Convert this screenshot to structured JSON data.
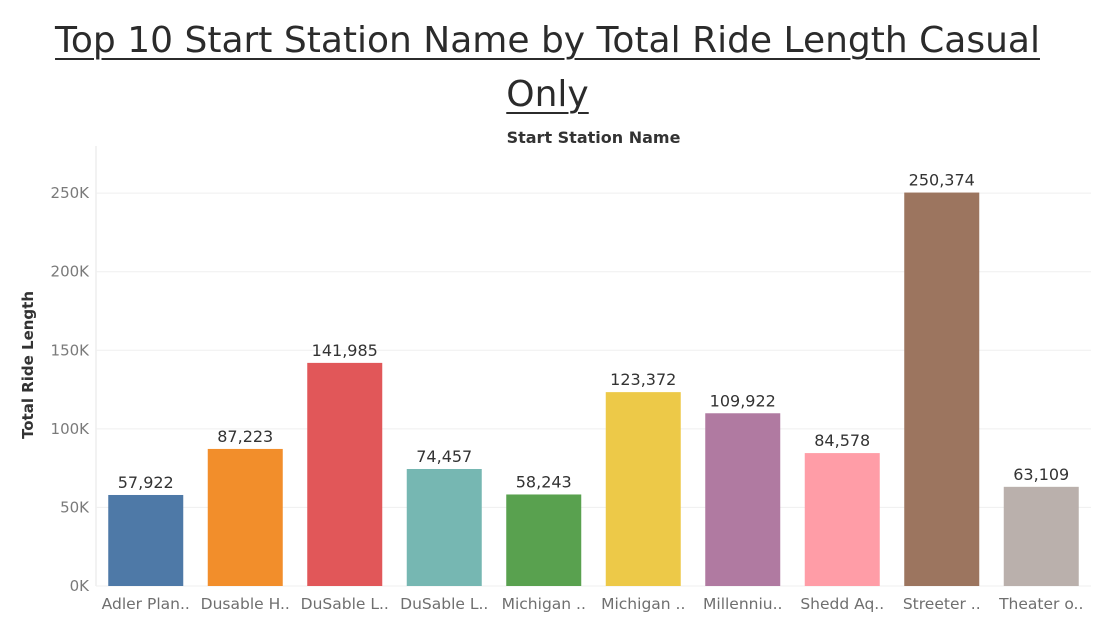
{
  "chart_data": {
    "type": "bar",
    "title_line1": "Top 10 Start Station Name by Total Ride Length Casual",
    "title_line2": "Only",
    "column_header": "Start Station Name",
    "ylabel": "Total Ride Length",
    "ylim": [
      0,
      280000
    ],
    "yticks": [
      0,
      50000,
      100000,
      150000,
      200000,
      250000
    ],
    "ytick_labels": [
      "0K",
      "50K",
      "100K",
      "150K",
      "200K",
      "250K"
    ],
    "grid": true,
    "categories": [
      "Adler Plan..",
      "Dusable H..",
      "DuSable L..",
      "DuSable L..",
      "Michigan ..",
      "Michigan ..",
      "Millenniu..",
      "Shedd Aq..",
      "Streeter ..",
      "Theater o.."
    ],
    "values": [
      57922,
      87223,
      141985,
      74457,
      58243,
      123372,
      109922,
      84578,
      250374,
      63109
    ],
    "value_labels": [
      "57,922",
      "87,223",
      "141,985",
      "74,457",
      "58,243",
      "123,372",
      "109,922",
      "84,578",
      "250,374",
      "63,109"
    ],
    "colors": [
      "#4e79a7",
      "#f28e2b",
      "#e15759",
      "#76b7b2",
      "#59a14f",
      "#edc948",
      "#b07aa1",
      "#ff9da7",
      "#9c755f",
      "#bab0ac"
    ]
  }
}
